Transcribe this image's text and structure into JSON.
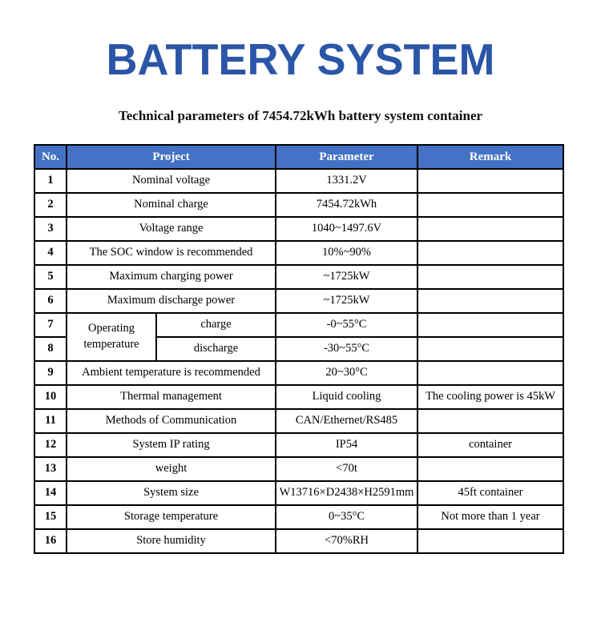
{
  "page": {
    "title": "BATTERY SYSTEM",
    "subtitle": "Technical parameters of 7454.72kWh battery system container"
  },
  "colors": {
    "title_blue": "#2b56a8",
    "header_blue": "#4472c4",
    "header_text": "#ffffff",
    "border": "#000000"
  },
  "table": {
    "headers": {
      "no": "No.",
      "project": "Project",
      "parameter": "Parameter",
      "remark": "Remark"
    },
    "rows": [
      {
        "no": "1",
        "project": "Nominal voltage",
        "parameter": "1331.2V",
        "remark": ""
      },
      {
        "no": "2",
        "project": "Nominal charge",
        "parameter": "7454.72kWh",
        "remark": ""
      },
      {
        "no": "3",
        "project": "Voltage range",
        "parameter": "1040~1497.6V",
        "remark": ""
      },
      {
        "no": "4",
        "project": "The SOC window is recommended",
        "parameter": "10%~90%",
        "remark": ""
      },
      {
        "no": "5",
        "project": "Maximum charging power",
        "parameter": "~1725kW",
        "remark": ""
      },
      {
        "no": "6",
        "project": "Maximum discharge power",
        "parameter": "~1725kW",
        "remark": ""
      },
      {
        "no": "7",
        "project_group": "Operating temperature",
        "project_sub": "charge",
        "parameter": "-0~55°C",
        "remark": ""
      },
      {
        "no": "8",
        "project_sub": "discharge",
        "parameter": "-30~55°C",
        "remark": ""
      },
      {
        "no": "9",
        "project": "Ambient temperature is recommended",
        "parameter": "20~30°C",
        "remark": ""
      },
      {
        "no": "10",
        "project": "Thermal management",
        "parameter": "Liquid cooling",
        "remark": "The cooling power is 45kW"
      },
      {
        "no": "11",
        "project": "Methods of Communication",
        "parameter": "CAN/Ethernet/RS485",
        "remark": ""
      },
      {
        "no": "12",
        "project": "System IP rating",
        "parameter": "IP54",
        "remark": "container"
      },
      {
        "no": "13",
        "project": "weight",
        "parameter": "<70t",
        "remark": ""
      },
      {
        "no": "14",
        "project": "System size",
        "parameter": "W13716×D2438×H2591mm",
        "remark": "45ft container"
      },
      {
        "no": "15",
        "project": "Storage temperature",
        "parameter": "0~35°C",
        "remark": "Not more than 1 year"
      },
      {
        "no": "16",
        "project": "Store humidity",
        "parameter": "<70%RH",
        "remark": ""
      }
    ]
  }
}
